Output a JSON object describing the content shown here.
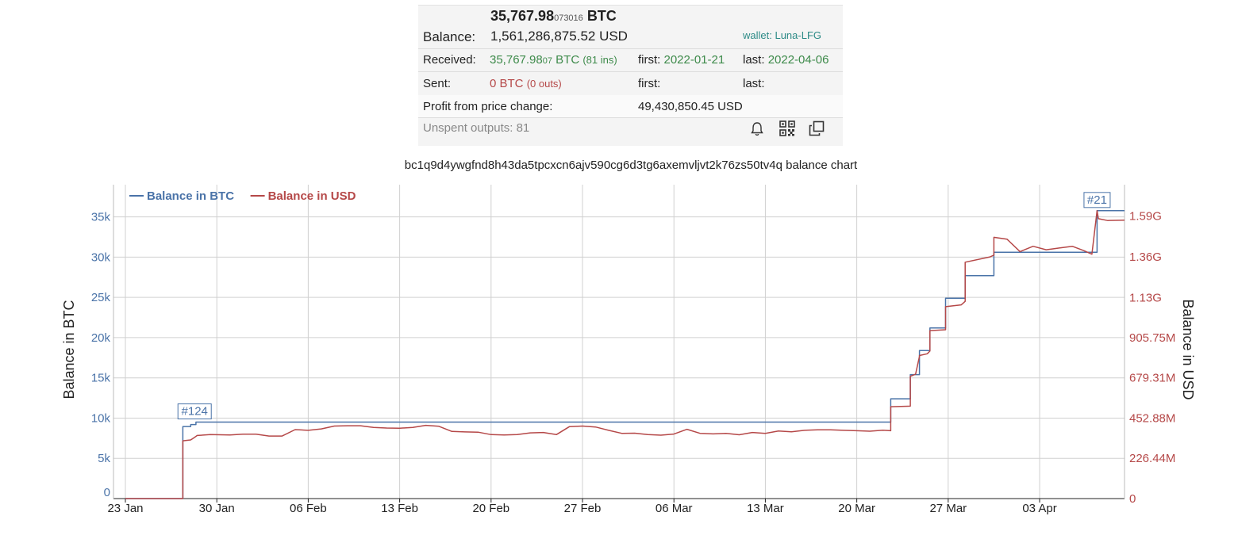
{
  "balance": {
    "btc_main": "35,767.98",
    "btc_small": "073016",
    "btc_unit": "BTC",
    "label": "Balance:",
    "usd": "1,561,286,875.52 USD",
    "wallet": "wallet: Luna-LFG"
  },
  "received": {
    "label": "Received:",
    "btc_main": "35,767.98",
    "btc_small": "07",
    "btc_unit": "BTC",
    "count": "(81 ins)",
    "first": "first: 2022-01-21",
    "last": "last: 2022-04-06"
  },
  "sent": {
    "label": "Sent:",
    "btc": "0 BTC",
    "count": "(0 outs)",
    "first": "first:",
    "last": "last:"
  },
  "profit": {
    "label": "Profit from price change:",
    "value": "49,430,850.45 USD"
  },
  "unspent": "Unspent outputs: 81",
  "icons": [
    "bell-icon",
    "qr-code-icon",
    "copy-icon"
  ],
  "colors": {
    "btc": "#4a73a8",
    "usd": "#b54848",
    "grid": "#d0d0d0",
    "axis": "#222222"
  },
  "chart_data": {
    "type": "line",
    "title": "bc1q9d4ywgfnd8h43da5tpcxcn6ajv590cg6d3tg6axemvljvt2k76zs50tv4q balance chart",
    "legend_position": "top-left",
    "grid": true,
    "x_ticks": [
      "23 Jan",
      "30 Jan",
      "06 Feb",
      "13 Feb",
      "20 Feb",
      "27 Feb",
      "06 Mar",
      "13 Mar",
      "20 Mar",
      "27 Mar",
      "03 Apr"
    ],
    "x_start": "2022-01-23",
    "xlim": [
      0,
      76.5
    ],
    "left_axis": {
      "label": "Balance in BTC",
      "ylim": [
        0,
        39000
      ],
      "ticks": [
        0,
        5000,
        10000,
        15000,
        20000,
        25000,
        30000,
        35000
      ],
      "tick_labels": [
        "0",
        "5k",
        "10k",
        "15k",
        "20k",
        "25k",
        "30k",
        "35k"
      ]
    },
    "right_axis": {
      "label": "Balance in USD",
      "ylim": [
        0,
        1766400000
      ],
      "ticks": [
        0,
        226440000,
        452880000,
        679310000,
        905750000,
        1130000000,
        1360000000,
        1590000000
      ],
      "tick_labels": [
        "0",
        "226.44M",
        "452.88M",
        "679.31M",
        "905.75M",
        "1.13G",
        "1.36G",
        "1.59G"
      ]
    },
    "annotations": [
      {
        "text": "#124",
        "x": 5.3,
        "y": 9500
      },
      {
        "text": "#21",
        "x": 74.4,
        "y": 35768
      }
    ],
    "series": [
      {
        "name": "Balance in BTC",
        "axis": "left",
        "step": true,
        "x": [
          0,
          4.4,
          4.4,
          5.0,
          5.0,
          5.4,
          5.4,
          58.6,
          58.6,
          60.1,
          60.1,
          60.8,
          60.8,
          61.6,
          61.6,
          62.8,
          62.8,
          64.3,
          64.3,
          66.5,
          66.5,
          74.0,
          74.0,
          74.4,
          74.4,
          76.5
        ],
        "y": [
          0,
          0,
          8950,
          8950,
          9200,
          9200,
          9500,
          9500,
          12400,
          12400,
          15400,
          15400,
          18400,
          18400,
          21200,
          21200,
          24900,
          24900,
          27700,
          27700,
          30600,
          30600,
          30600,
          30600,
          35768,
          35768
        ]
      },
      {
        "name": "Balance in USD",
        "axis": "right",
        "x": [
          0,
          4.4,
          4.4,
          5.0,
          5.3,
          5.5,
          6.5,
          8,
          9,
          10,
          11,
          12,
          13,
          14,
          15,
          16,
          17,
          18,
          19,
          20,
          21,
          22,
          23,
          24,
          25,
          26,
          27,
          28,
          29,
          30,
          31,
          32,
          33,
          34,
          35,
          36,
          37,
          38,
          39,
          40,
          41,
          42,
          43,
          44,
          45,
          46,
          47,
          48,
          49,
          50,
          51,
          52,
          53,
          54,
          55,
          56,
          57,
          58,
          58.6,
          58.6,
          60.1,
          60.1,
          60.5,
          60.8,
          60.8,
          61.4,
          61.6,
          61.6,
          62.8,
          62.8,
          64.0,
          64.3,
          64.3,
          66.2,
          66.5,
          66.5,
          67.5,
          68.5,
          69.5,
          70.5,
          71.5,
          72.5,
          73.4,
          74.0,
          74.4,
          74.5,
          75.2,
          76.5
        ],
        "y": [
          0,
          0,
          325000000,
          330000000,
          345000000,
          355000000,
          360000000,
          358000000,
          362000000,
          362000000,
          352000000,
          352000000,
          388000000,
          384000000,
          392000000,
          408000000,
          410000000,
          410000000,
          400000000,
          397000000,
          396000000,
          400000000,
          412000000,
          407000000,
          378000000,
          375000000,
          374000000,
          360000000,
          358000000,
          360000000,
          370000000,
          372000000,
          360000000,
          405000000,
          408000000,
          403000000,
          384000000,
          367000000,
          368000000,
          360000000,
          357000000,
          363000000,
          390000000,
          367000000,
          364000000,
          367000000,
          359000000,
          372000000,
          367000000,
          380000000,
          376000000,
          384000000,
          387000000,
          387000000,
          384000000,
          382000000,
          379000000,
          385000000,
          382000000,
          517000000,
          520000000,
          688000000,
          700000000,
          800000000,
          805000000,
          815000000,
          830000000,
          945000000,
          950000000,
          1080000000,
          1090000000,
          1110000000,
          1330000000,
          1360000000,
          1370000000,
          1470000000,
          1460000000,
          1390000000,
          1420000000,
          1400000000,
          1410000000,
          1420000000,
          1395000000,
          1375000000,
          1620000000,
          1575000000,
          1565000000,
          1567000000
        ]
      }
    ]
  }
}
